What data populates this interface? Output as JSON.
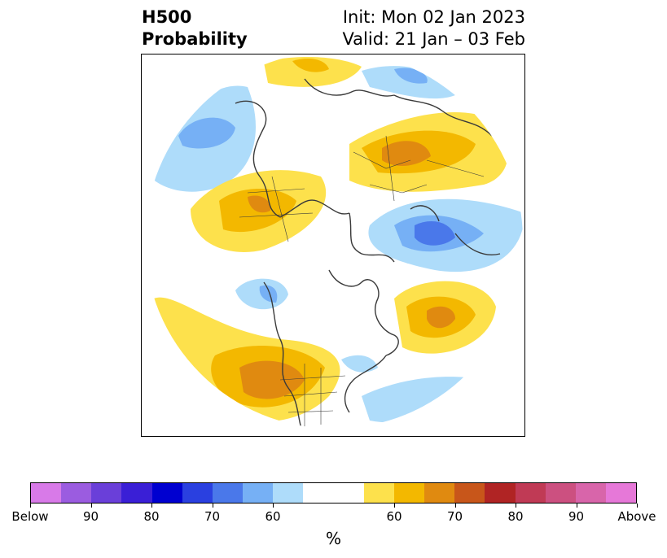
{
  "header": {
    "title_line1": "H500",
    "title_line2": "Probability",
    "init_line": "Init: Mon 02 Jan 2023",
    "valid_line": "Valid: 21 Jan – 03 Feb"
  },
  "colorbar": {
    "colors": [
      "#d87ae8",
      "#9b5ce0",
      "#6a3fd9",
      "#3a1fd6",
      "#0000d0",
      "#2a40e0",
      "#4a78ea",
      "#76b0f5",
      "#aedcfa",
      "#ffffff",
      "#ffffff",
      "#fde14c",
      "#f3b800",
      "#e08a10",
      "#c8561a",
      "#b02424",
      "#c03a55",
      "#cc5080",
      "#d865aa",
      "#e678d8"
    ],
    "tick_labels": [
      "Below",
      "90",
      "80",
      "70",
      "60",
      "60",
      "70",
      "80",
      "90",
      "Above"
    ],
    "unit": "%"
  },
  "map_colors": {
    "above_60": "#fde14c",
    "above_70": "#f3b800",
    "above_80": "#e08a10",
    "below_60": "#aedcfa",
    "below_70": "#76b0f5",
    "below_80": "#4a78ea",
    "coast": "#3a3a3a"
  }
}
